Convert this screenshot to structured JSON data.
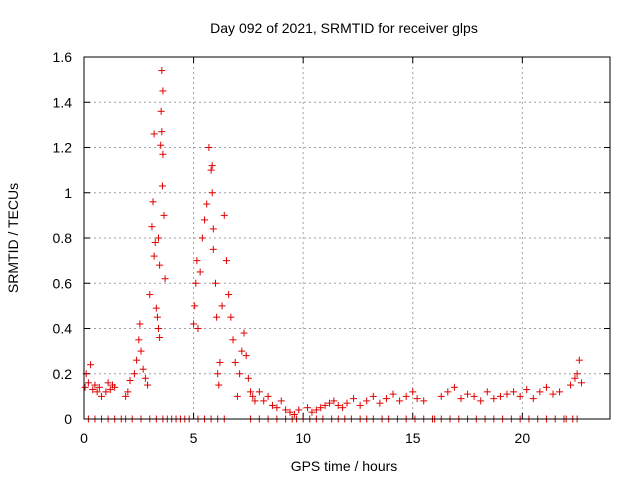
{
  "chart_data": {
    "type": "scatter",
    "title": "Day 092 of 2021, SRMTID for receiver glps",
    "xlabel": "GPS time / hours",
    "ylabel": "SRMTID / TECUs",
    "xlim": [
      0,
      24
    ],
    "ylim": [
      0,
      1.6
    ],
    "xticks": [
      0,
      5,
      10,
      15,
      20
    ],
    "xtick_labels": [
      "0",
      "5",
      "10",
      "15",
      "20"
    ],
    "yticks": [
      0,
      0.2,
      0.4,
      0.6,
      0.8,
      1.0,
      1.2,
      1.4,
      1.6
    ],
    "ytick_labels": [
      "0",
      "0.2",
      "0.4",
      "0.6",
      "0.8",
      "1",
      "1.2",
      "1.4",
      "1.6"
    ],
    "grid": true,
    "marker": "plus",
    "series": [
      {
        "name": "SRMTID",
        "color": "#e00000",
        "x": [
          0.05,
          0.1,
          0.2,
          0.3,
          0.4,
          0.5,
          0.6,
          0.7,
          0.8,
          1.0,
          1.1,
          1.2,
          1.3,
          1.4,
          1.9,
          2.0,
          2.1,
          2.3,
          2.4,
          2.5,
          2.55,
          2.6,
          2.7,
          2.8,
          2.9,
          3.0,
          3.1,
          3.15,
          3.2,
          3.3,
          3.35,
          3.4,
          3.45,
          3.5,
          3.55,
          3.6,
          3.65,
          3.7,
          5.0,
          5.05,
          5.1,
          5.15,
          5.2,
          5.3,
          5.4,
          5.5,
          5.6,
          5.7,
          5.8,
          5.85,
          5.9,
          6.0,
          6.05,
          6.1,
          6.15,
          6.2,
          6.3,
          6.4,
          6.5,
          6.6,
          6.7,
          6.8,
          6.9,
          7.0,
          7.1,
          7.2,
          7.3,
          7.4,
          7.5,
          7.6,
          7.7,
          7.8,
          8.0,
          8.2,
          8.4,
          8.6,
          8.8,
          9.0,
          9.2,
          9.4,
          9.6,
          9.8,
          10.2,
          10.4,
          10.6,
          10.8,
          11.0,
          11.2,
          11.4,
          11.6,
          11.8,
          12.0,
          12.3,
          12.6,
          12.9,
          13.2,
          13.5,
          13.8,
          14.1,
          14.4,
          14.7,
          15.0,
          15.2,
          15.5,
          16.3,
          16.6,
          16.9,
          17.2,
          17.5,
          17.8,
          18.1,
          18.4,
          18.7,
          19.0,
          19.3,
          19.6,
          19.9,
          20.2,
          20.5,
          20.8,
          21.1,
          21.4,
          21.7,
          22.2,
          22.4,
          22.5,
          22.6,
          22.7,
          3.52,
          3.55,
          3.58,
          3.6,
          5.85,
          5.9,
          3.2,
          3.25,
          3.4,
          3.45
        ],
        "y": [
          0.14,
          0.2,
          0.16,
          0.24,
          0.13,
          0.15,
          0.12,
          0.14,
          0.1,
          0.12,
          0.16,
          0.13,
          0.15,
          0.14,
          0.1,
          0.12,
          0.17,
          0.2,
          0.26,
          0.35,
          0.42,
          0.3,
          0.22,
          0.18,
          0.15,
          0.55,
          0.85,
          0.96,
          1.26,
          0.49,
          0.45,
          0.4,
          0.36,
          1.21,
          1.54,
          1.45,
          0.9,
          0.62,
          0.42,
          0.5,
          0.6,
          0.7,
          0.4,
          0.65,
          0.8,
          0.88,
          0.95,
          1.2,
          1.1,
          1.0,
          0.75,
          0.6,
          0.45,
          0.2,
          0.15,
          0.25,
          0.5,
          0.9,
          0.7,
          0.55,
          0.45,
          0.35,
          0.25,
          0.1,
          0.2,
          0.3,
          0.38,
          0.28,
          0.18,
          0.12,
          0.1,
          0.08,
          0.12,
          0.08,
          0.1,
          0.06,
          0.05,
          0.08,
          0.04,
          0.03,
          0.02,
          0.04,
          0.05,
          0.03,
          0.04,
          0.05,
          0.06,
          0.07,
          0.08,
          0.06,
          0.05,
          0.07,
          0.09,
          0.06,
          0.08,
          0.1,
          0.07,
          0.09,
          0.11,
          0.08,
          0.1,
          0.12,
          0.09,
          0.08,
          0.1,
          0.12,
          0.14,
          0.09,
          0.11,
          0.1,
          0.08,
          0.12,
          0.09,
          0.1,
          0.11,
          0.12,
          0.1,
          0.13,
          0.09,
          0.12,
          0.14,
          0.11,
          0.12,
          0.15,
          0.18,
          0.2,
          0.26,
          0.16,
          1.36,
          1.27,
          1.03,
          1.17,
          1.12,
          0.84,
          0.72,
          0.78,
          0.8,
          0.68
        ],
        "zero_x": [
          0.2,
          0.5,
          0.8,
          1.1,
          1.4,
          1.7,
          1.9,
          2.2,
          2.6,
          3.0,
          3.3,
          3.6,
          3.8,
          4.0,
          4.2,
          4.4,
          4.6,
          4.8,
          5.2,
          5.5,
          5.8,
          6.1,
          6.4,
          7.6,
          8.0,
          8.4,
          8.8,
          9.2,
          9.5,
          9.7,
          10.0,
          10.3,
          10.6,
          10.9,
          11.3,
          11.6,
          11.9,
          12.2,
          12.6,
          12.9,
          13.2,
          13.6,
          13.9,
          14.3,
          14.7,
          15.1,
          15.5,
          15.9,
          16.0,
          16.3,
          16.7,
          17.1,
          17.5,
          17.9,
          18.3,
          18.7,
          19.1,
          19.5,
          19.9,
          20.3,
          20.7,
          21.1,
          21.5,
          21.9,
          22.0,
          22.3,
          22.5
        ]
      }
    ]
  }
}
